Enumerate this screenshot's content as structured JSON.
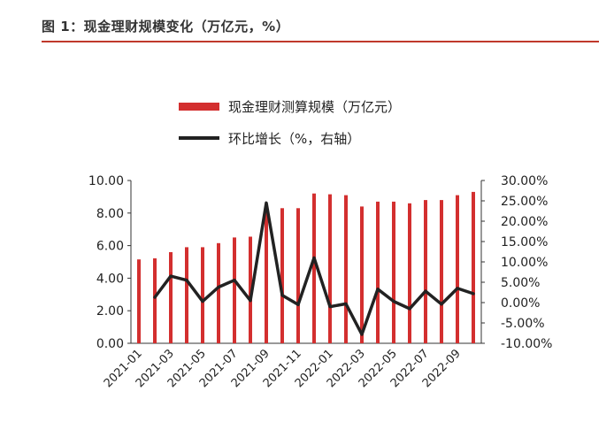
{
  "figure": {
    "title": "图 1：现金理财规模变化（万亿元，%）",
    "accent_color": "#c0392b"
  },
  "chart_data": {
    "type": "bar",
    "categories": [
      "2021-01",
      "2021-02",
      "2021-03",
      "2021-04",
      "2021-05",
      "2021-06",
      "2021-07",
      "2021-08",
      "2021-09",
      "2021-10",
      "2021-11",
      "2021-12",
      "2022-01",
      "2022-02",
      "2022-03",
      "2022-04",
      "2022-05",
      "2022-06",
      "2022-07",
      "2022-08",
      "2022-09",
      "2022-10"
    ],
    "x_tick_labels": [
      "2021-01",
      "2021-03",
      "2021-05",
      "2021-07",
      "2021-09",
      "2021-11",
      "2022-01",
      "2022-03",
      "2022-05",
      "2022-07",
      "2022-09"
    ],
    "series": [
      {
        "name": "现金理财测算规模（万亿元）",
        "type": "bar",
        "axis": "left",
        "color": "#d32f2f",
        "values": [
          5.15,
          5.22,
          5.6,
          5.9,
          5.9,
          6.15,
          6.5,
          6.55,
          8.2,
          8.3,
          8.3,
          9.2,
          9.15,
          9.1,
          8.4,
          8.7,
          8.7,
          8.6,
          8.8,
          8.8,
          9.1,
          9.3
        ]
      },
      {
        "name": "环比增长（%，右轴）",
        "type": "line",
        "axis": "right",
        "color": "#222222",
        "values": [
          null,
          1.3,
          6.5,
          5.5,
          0.3,
          3.8,
          5.5,
          0.5,
          24.5,
          1.8,
          -0.5,
          11.0,
          -1.0,
          -0.3,
          -7.8,
          3.3,
          0.3,
          -1.5,
          2.8,
          -0.4,
          3.5,
          2.2
        ]
      }
    ],
    "y_left": {
      "min": 0,
      "max": 10,
      "step": 2,
      "tick_labels": [
        "0.00",
        "2.00",
        "4.00",
        "6.00",
        "8.00",
        "10.00"
      ]
    },
    "y_right": {
      "min": -10,
      "max": 30,
      "step": 5,
      "tick_labels": [
        "-10.00%",
        "-5.00%",
        "0.00%",
        "5.00%",
        "10.00%",
        "15.00%",
        "20.00%",
        "25.00%",
        "30.00%"
      ]
    },
    "legend_position": "top",
    "grid": false
  }
}
